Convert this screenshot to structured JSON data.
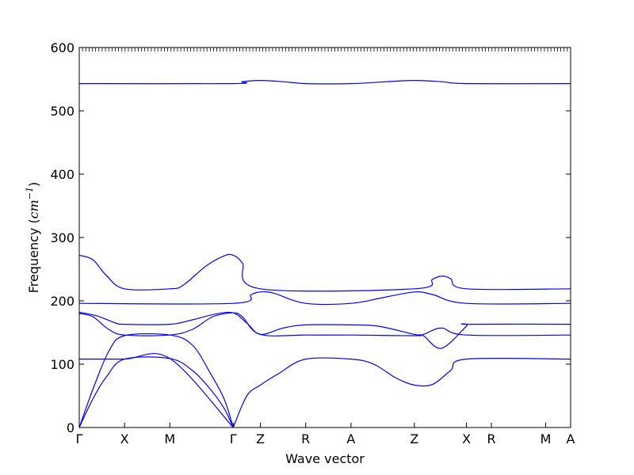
{
  "chart_data": {
    "type": "line",
    "title": "",
    "xlabel": "Wave vector",
    "ylabel": "Frequency (cm⁻¹)",
    "ylabel_parts": {
      "prefix": "Frequency (",
      "unit": "cm",
      "exponent": "−1",
      "suffix": ")"
    },
    "ylim": [
      0,
      600
    ],
    "yticks": [
      0,
      100,
      200,
      300,
      400,
      500,
      600
    ],
    "grid": false,
    "line_color": "#0000ff",
    "kpoints": [
      {
        "label": "Γ",
        "x": 0
      },
      {
        "label": "X",
        "x": 1.0
      },
      {
        "label": "M",
        "x": 2.0
      },
      {
        "label": "Γ",
        "x": 3.4
      },
      {
        "label": "Z",
        "x": 4.0
      },
      {
        "label": "R",
        "x": 5.0
      },
      {
        "label": "A",
        "x": 6.0
      },
      {
        "label": "Z",
        "x": 7.4
      },
      {
        "label": "X",
        "x": 8.55
      },
      {
        "label": "R",
        "x": 9.1
      },
      {
        "label": "M",
        "x": 10.3
      },
      {
        "label": "A",
        "x": 10.85
      }
    ],
    "xlim": [
      0,
      10.85
    ],
    "series": [
      {
        "values": [
          [
            0,
            0
          ],
          [
            0.3,
            45
          ],
          [
            0.6,
            80
          ],
          [
            1.0,
            108
          ],
          [
            2.0,
            109
          ],
          [
            2.5,
            90
          ],
          [
            2.9,
            60
          ],
          [
            3.2,
            30
          ],
          [
            3.4,
            0
          ]
        ]
      },
      {
        "values": [
          [
            0,
            0
          ],
          [
            0.3,
            60
          ],
          [
            0.65,
            120
          ],
          [
            1.0,
            145
          ],
          [
            2.0,
            146
          ],
          [
            2.5,
            130
          ],
          [
            2.9,
            85
          ],
          [
            3.2,
            45
          ],
          [
            3.4,
            0
          ]
        ]
      },
      {
        "values": [
          [
            0,
            180
          ],
          [
            0.3,
            175
          ],
          [
            0.65,
            155
          ],
          [
            1.0,
            146
          ],
          [
            2.0,
            146
          ],
          [
            2.5,
            155
          ],
          [
            2.95,
            175
          ],
          [
            3.4,
            181
          ],
          [
            3.6,
            175
          ],
          [
            4.0,
            147
          ],
          [
            5.0,
            146
          ],
          [
            6.0,
            146
          ],
          [
            7.4,
            145
          ],
          [
            7.6,
            147
          ],
          [
            8.0,
            157
          ],
          [
            8.55,
            146
          ],
          [
            10.85,
            146
          ]
        ]
      },
      {
        "values": [
          [
            0,
            182
          ],
          [
            0.4,
            176
          ],
          [
            0.8,
            165
          ],
          [
            1.0,
            163
          ],
          [
            2.0,
            163
          ],
          [
            2.5,
            170
          ],
          [
            3.0,
            179
          ],
          [
            3.4,
            181
          ],
          [
            3.7,
            165
          ],
          [
            4.0,
            147
          ],
          [
            4.5,
            157
          ],
          [
            5.0,
            162
          ],
          [
            6.0,
            162
          ],
          [
            6.6,
            160
          ],
          [
            7.4,
            147
          ],
          [
            7.6,
            145
          ],
          [
            8.0,
            125
          ],
          [
            8.55,
            160
          ],
          [
            8.6,
            163
          ],
          [
            10.85,
            163
          ]
        ]
      },
      {
        "values": [
          [
            0,
            196
          ],
          [
            3.4,
            196
          ],
          [
            3.8,
            210
          ],
          [
            4.0,
            214
          ],
          [
            4.3,
            212
          ],
          [
            5.0,
            196
          ],
          [
            6.0,
            196
          ],
          [
            6.7,
            205
          ],
          [
            7.4,
            214
          ],
          [
            7.8,
            210
          ],
          [
            8.55,
            196
          ],
          [
            10.85,
            196
          ]
        ]
      },
      {
        "values": [
          [
            0,
            272
          ],
          [
            0.3,
            265
          ],
          [
            0.6,
            240
          ],
          [
            1.0,
            219
          ],
          [
            2.0,
            219
          ],
          [
            2.3,
            225
          ],
          [
            2.8,
            255
          ],
          [
            3.2,
            271
          ],
          [
            3.4,
            272
          ],
          [
            3.6,
            260
          ],
          [
            4.0,
            219
          ],
          [
            7.4,
            219
          ],
          [
            7.8,
            234
          ],
          [
            8.0,
            239
          ],
          [
            8.2,
            235
          ],
          [
            8.55,
            219
          ],
          [
            10.85,
            219
          ]
        ]
      },
      {
        "values": [
          [
            0,
            108
          ],
          [
            1.0,
            108
          ],
          [
            2.0,
            109
          ],
          [
            3.4,
            0
          ]
        ]
      },
      {
        "values": [
          [
            3.4,
            0
          ],
          [
            3.7,
            50
          ],
          [
            4.0,
            67
          ],
          [
            4.4,
            85
          ],
          [
            5.0,
            108
          ],
          [
            6.0,
            108
          ],
          [
            6.5,
            100
          ],
          [
            7.0,
            78
          ],
          [
            7.4,
            67
          ],
          [
            7.8,
            68
          ],
          [
            8.2,
            90
          ],
          [
            8.55,
            108
          ],
          [
            10.85,
            108
          ]
        ]
      },
      {
        "values": [
          [
            0,
            543
          ],
          [
            3.4,
            543
          ],
          [
            3.6,
            546
          ],
          [
            4.0,
            548
          ],
          [
            4.5,
            546
          ],
          [
            5.0,
            543
          ],
          [
            6.0,
            543
          ],
          [
            6.8,
            546
          ],
          [
            7.4,
            548
          ],
          [
            8.0,
            546
          ],
          [
            8.55,
            543
          ],
          [
            10.85,
            543
          ]
        ]
      }
    ]
  }
}
